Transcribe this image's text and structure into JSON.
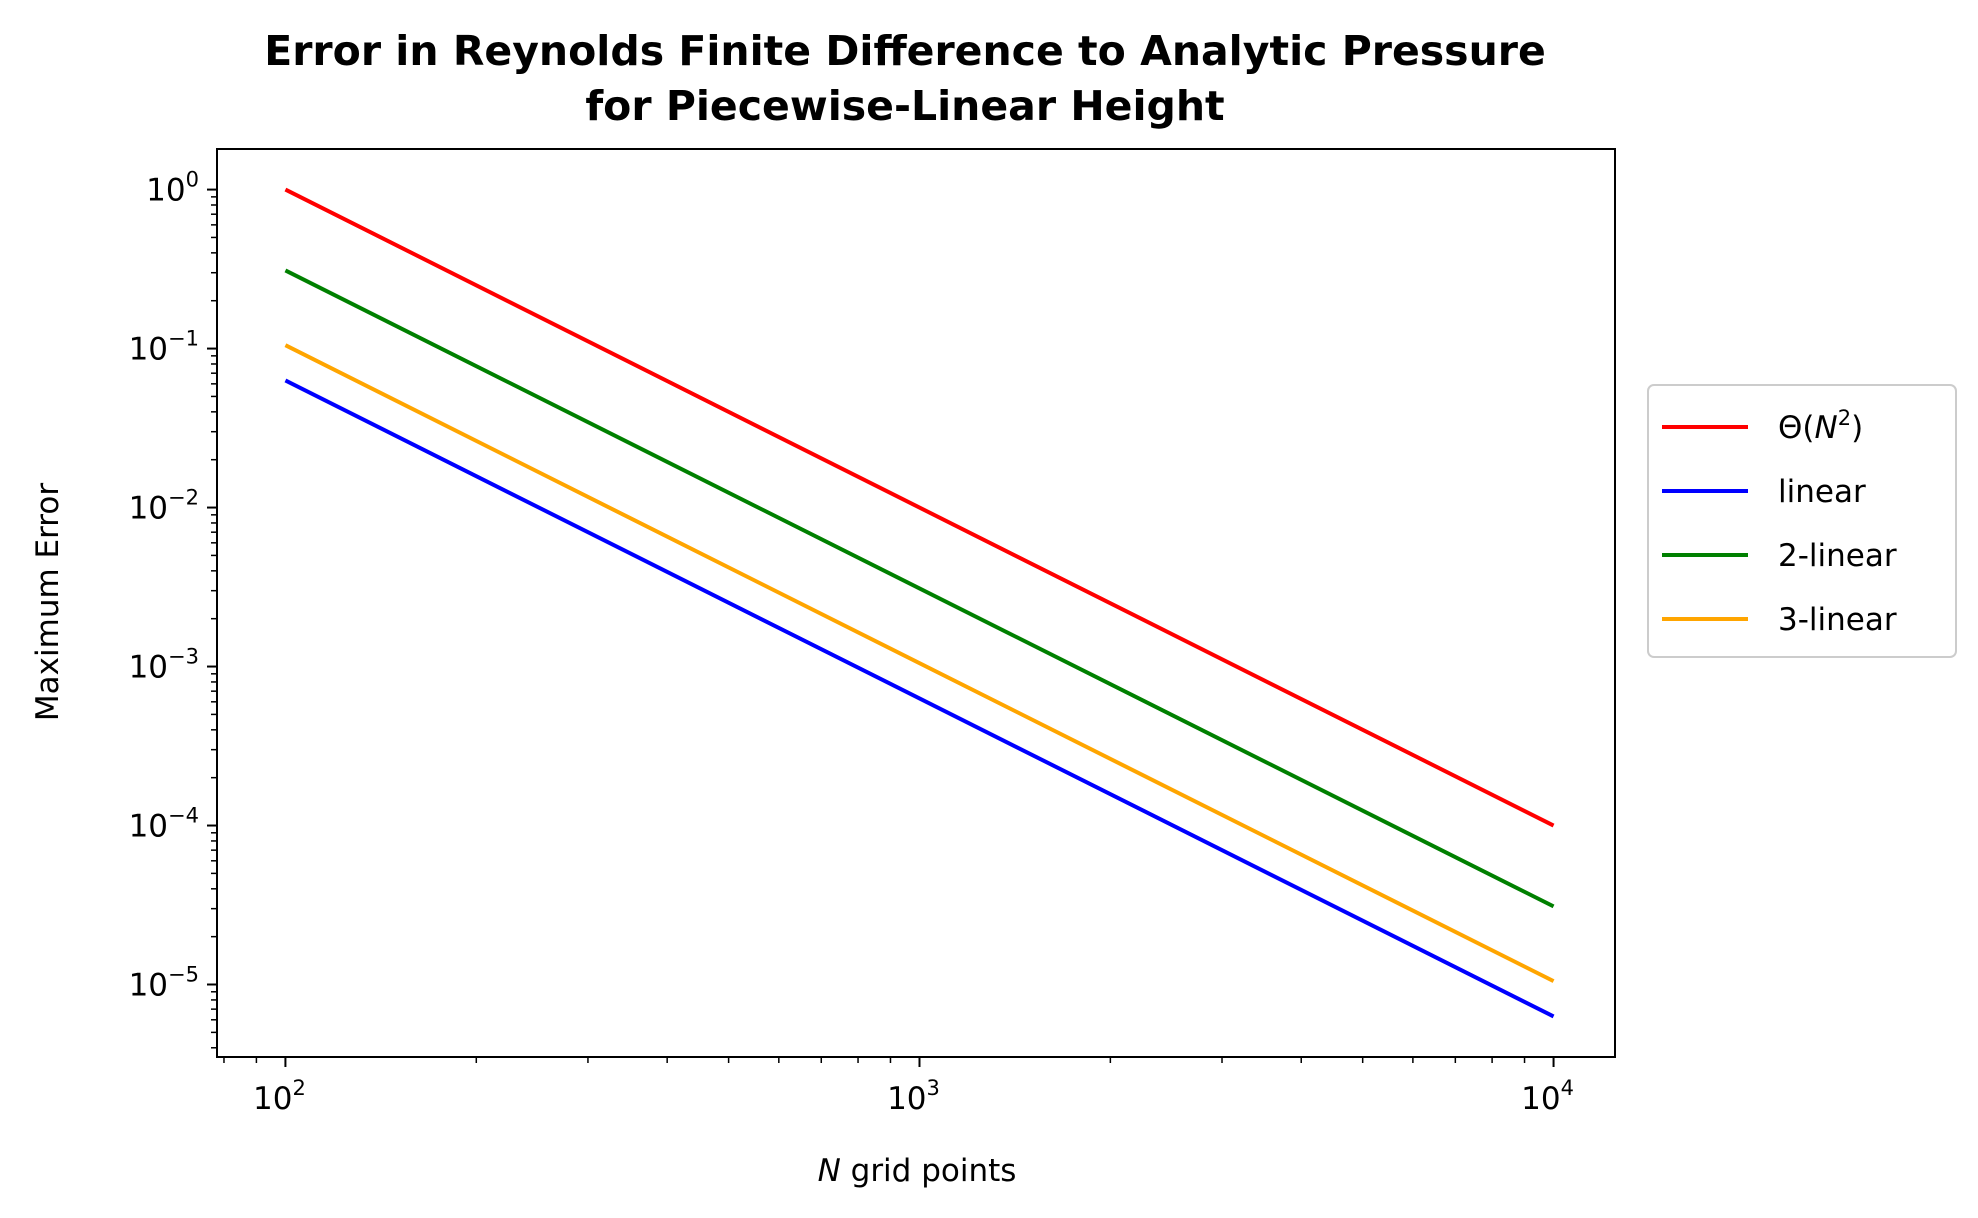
{
  "chart_data": {
    "type": "line",
    "title": [
      "Error in Reynolds Finite Difference to Analytic Pressure",
      "for Piecewise-Linear Height"
    ],
    "xlabel": {
      "italic": "N",
      "text": " grid points"
    },
    "ylabel": "Maximum Error",
    "xscale": "log",
    "yscale": "log",
    "xlim": [
      78,
      12500
    ],
    "ylim": [
      3.5e-06,
      1.8
    ],
    "xticks": [
      {
        "value": 100,
        "base": "10",
        "exp": "2"
      },
      {
        "value": 1000,
        "base": "10",
        "exp": "3"
      },
      {
        "value": 10000,
        "base": "10",
        "exp": "4"
      }
    ],
    "yticks": [
      {
        "value": 1,
        "base": "10",
        "exp": "0"
      },
      {
        "value": 0.1,
        "base": "10",
        "exp": "−1"
      },
      {
        "value": 0.01,
        "base": "10",
        "exp": "−2"
      },
      {
        "value": 0.001,
        "base": "10",
        "exp": "−3"
      },
      {
        "value": 0.0001,
        "base": "10",
        "exp": "−4"
      },
      {
        "value": 1e-05,
        "base": "10",
        "exp": "−5"
      }
    ],
    "grid": false,
    "legend_position": "center-right-outside",
    "x": [
      100,
      10000
    ],
    "series": [
      {
        "name": "Θ(N²)",
        "legend_parts": [
          "Θ(",
          "N",
          "2",
          ")"
        ],
        "color": "#ff0000",
        "values": [
          1.0,
          0.0001
        ]
      },
      {
        "name": "linear",
        "color": "#0000ff",
        "values": [
          0.063,
          6.3e-06
        ]
      },
      {
        "name": "2-linear",
        "color": "#008000",
        "values": [
          0.31,
          3.1e-05
        ]
      },
      {
        "name": "3-linear",
        "color": "#ffa500",
        "values": [
          0.105,
          1.05e-05
        ]
      }
    ]
  }
}
